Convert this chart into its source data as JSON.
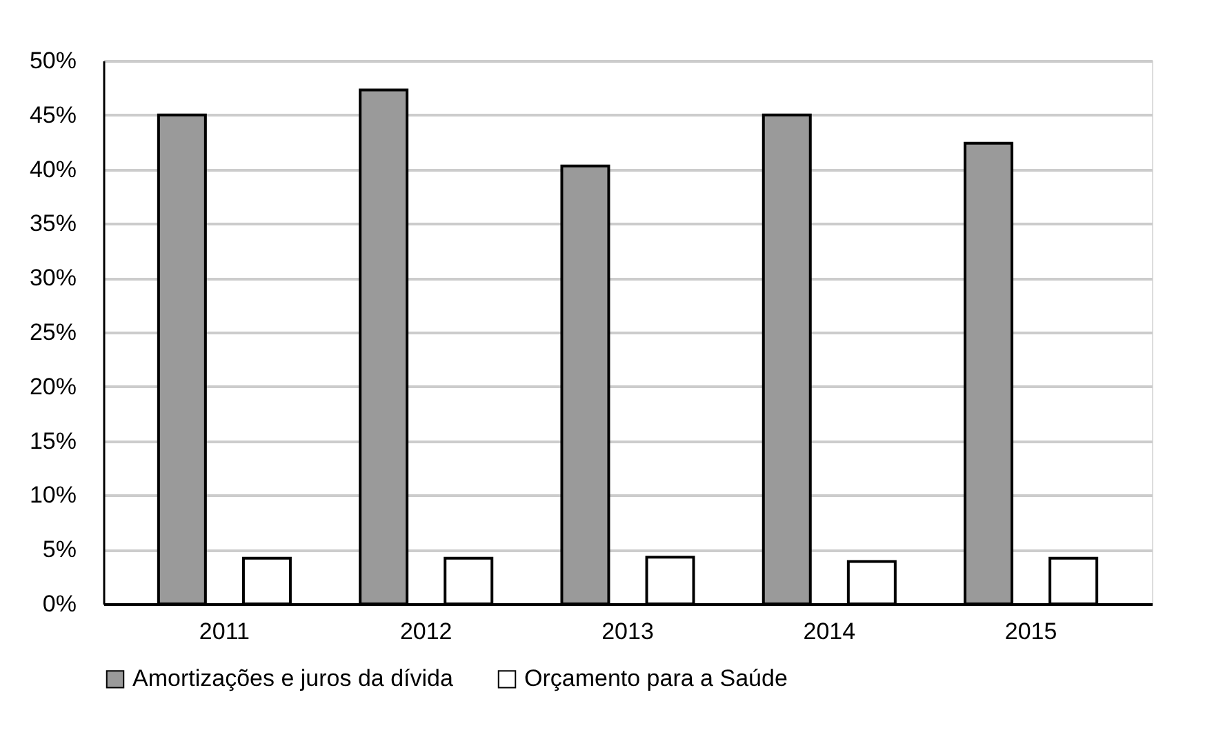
{
  "chart_data": {
    "type": "bar",
    "categories": [
      "2011",
      "2012",
      "2013",
      "2014",
      "2015"
    ],
    "series": [
      {
        "name": "Amortizações e juros da dívida",
        "color": "#9a9a9a",
        "values": [
          45.0,
          47.3,
          40.3,
          45.0,
          42.4
        ]
      },
      {
        "name": "Orçamento para a Saúde",
        "color": "#ffffff",
        "values": [
          4.2,
          4.2,
          4.3,
          3.9,
          4.2
        ]
      }
    ],
    "ylim": [
      0,
      50
    ],
    "yticks": [
      {
        "value": 0,
        "label": "0%"
      },
      {
        "value": 5,
        "label": "5%"
      },
      {
        "value": 10,
        "label": "10%"
      },
      {
        "value": 15,
        "label": "15%"
      },
      {
        "value": 20,
        "label": "20%"
      },
      {
        "value": 25,
        "label": "25%"
      },
      {
        "value": 30,
        "label": "30%"
      },
      {
        "value": 35,
        "label": "35%"
      },
      {
        "value": 40,
        "label": "40%"
      },
      {
        "value": 45,
        "label": "45%"
      },
      {
        "value": 50,
        "label": "50%"
      }
    ],
    "grid": "y",
    "legend": "bottom"
  }
}
